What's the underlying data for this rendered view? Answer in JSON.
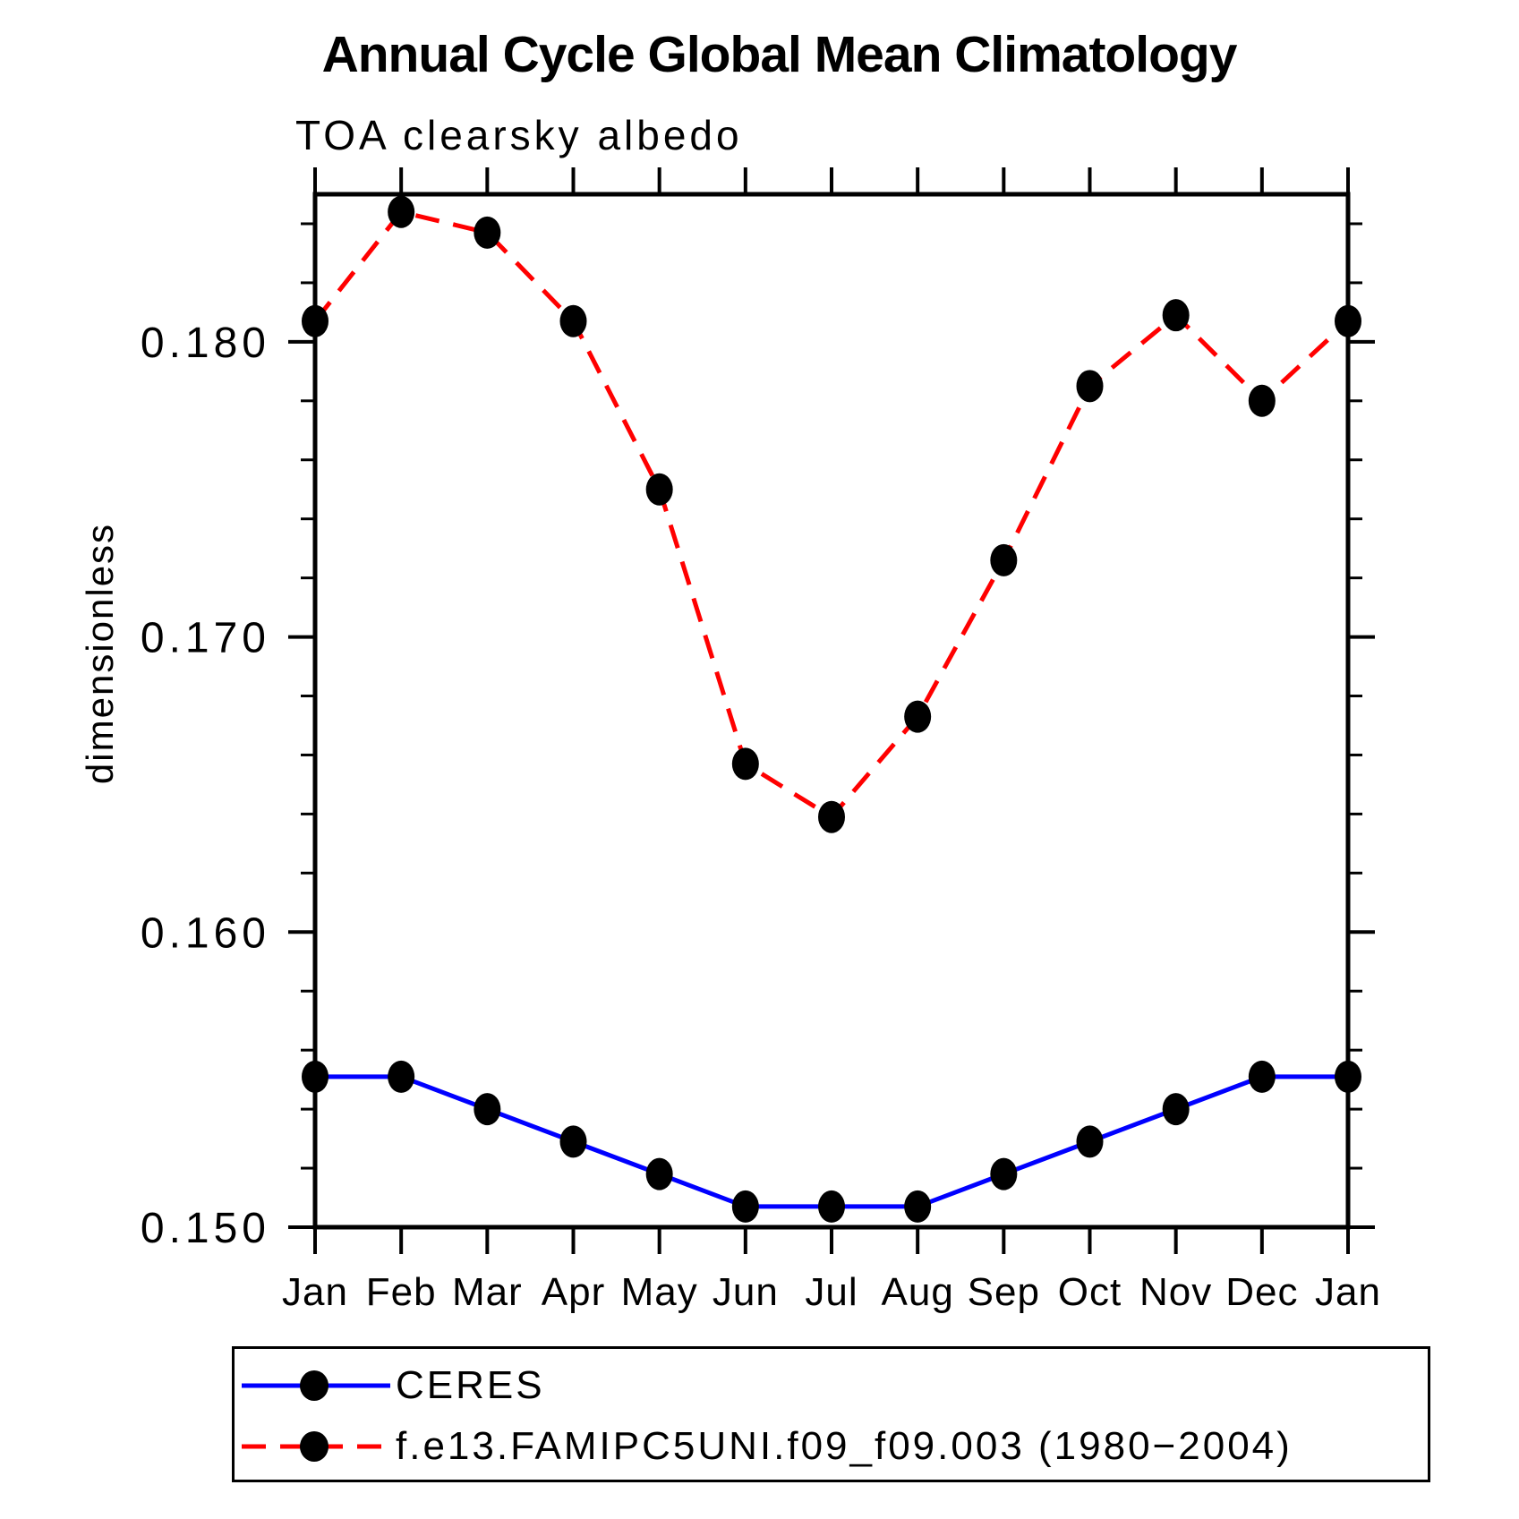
{
  "title": "Annual Cycle Global Mean Climatology",
  "subtitle": "TOA clearsky albedo",
  "ylabel": "dimensionless",
  "axis_color": "#000000",
  "background": "#ffffff",
  "chart_data": {
    "type": "line",
    "x_categories": [
      "Jan",
      "Feb",
      "Mar",
      "Apr",
      "May",
      "Jun",
      "Jul",
      "Aug",
      "Sep",
      "Oct",
      "Nov",
      "Dec",
      "Jan"
    ],
    "ylim": [
      0.15,
      0.185
    ],
    "yticks": [
      0.15,
      0.16,
      0.17,
      0.18
    ],
    "ytick_labels": [
      "0.150",
      "0.160",
      "0.170",
      "0.180"
    ],
    "minor_tick_step": 0.002,
    "grid": false,
    "legend_position": "bottom-left",
    "series": [
      {
        "name": "CERES",
        "color": "#0000ff",
        "line_style": "solid",
        "marker": "filled-circle",
        "marker_color": "#000000",
        "values": [
          0.1551,
          0.1551,
          0.154,
          0.1529,
          0.1518,
          0.1507,
          0.1507,
          0.1507,
          0.1518,
          0.1529,
          0.154,
          0.1551,
          0.1551
        ]
      },
      {
        "name": "f.e13.FAMIPC5UNI.f09_f09.003 (1980−2004)",
        "color": "#ff0000",
        "line_style": "dashed",
        "marker": "filled-circle",
        "marker_color": "#000000",
        "values": [
          0.1807,
          0.1844,
          0.1837,
          0.1807,
          0.175,
          0.1657,
          0.1639,
          0.1673,
          0.1726,
          0.1785,
          0.1809,
          0.178,
          0.1807
        ]
      }
    ]
  }
}
